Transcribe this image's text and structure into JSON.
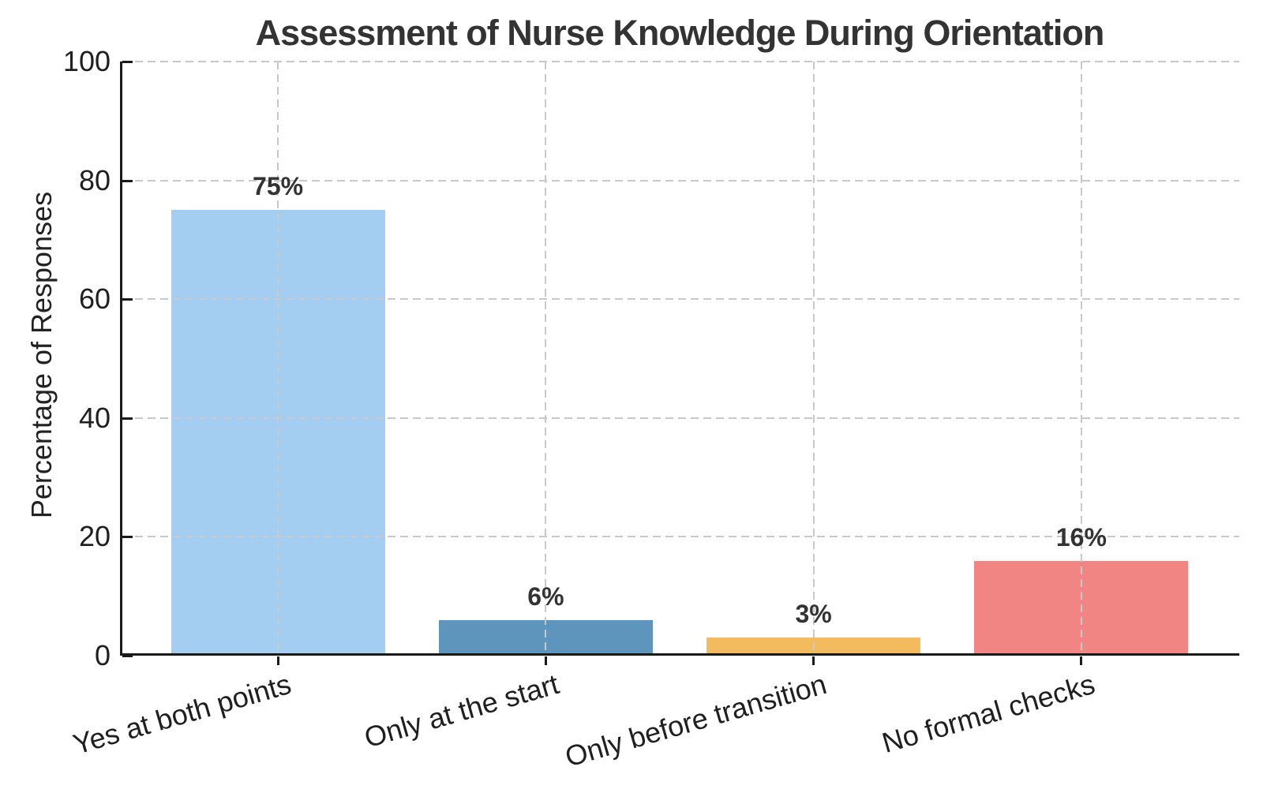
{
  "chart_data": {
    "type": "bar",
    "title": "Assessment of Nurse Knowledge During Orientation",
    "xlabel": "",
    "ylabel": "Percentage of Responses",
    "categories": [
      "Yes at both points",
      "Only at the start",
      "Only before transition",
      "No formal checks"
    ],
    "values": [
      75,
      6,
      3,
      16
    ],
    "value_labels": [
      "75%",
      "6%",
      "3%",
      "16%"
    ],
    "bar_colors": [
      "#a4cef1",
      "#5e95bc",
      "#f4bb5e",
      "#f18584"
    ],
    "ylim": [
      0,
      100
    ],
    "yticks": [
      0,
      20,
      40,
      60,
      80,
      100
    ],
    "grid": "dashed gridlines on both axes, drawn above bars",
    "legend": "none",
    "styles": {
      "background_color": "#ffffff",
      "title_color": "#333333",
      "axis_label_color": "#222222",
      "tick_label_color": "#1f1f1f",
      "value_label_color": "#333333",
      "grid_color": "#c9c9c9",
      "spine_color": "#1a1a1a"
    }
  }
}
